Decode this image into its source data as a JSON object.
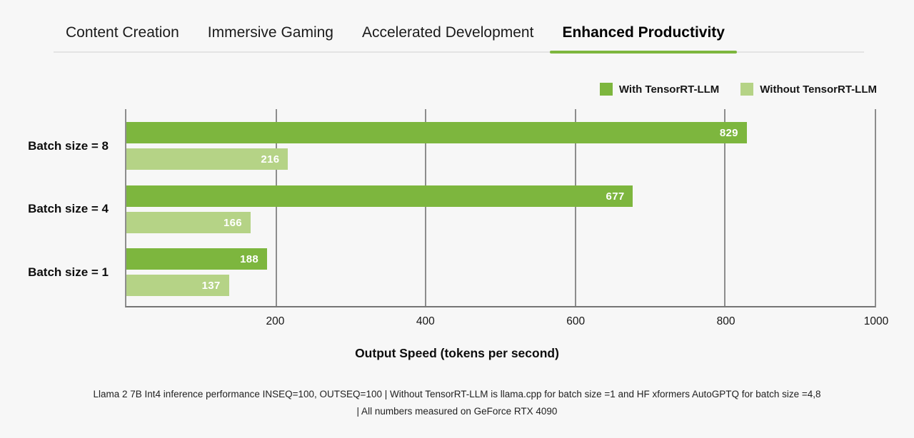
{
  "tabs": {
    "items": [
      {
        "label": "Content Creation",
        "active": false
      },
      {
        "label": "Immersive Gaming",
        "active": false
      },
      {
        "label": "Accelerated Development",
        "active": false
      },
      {
        "label": "Enhanced Productivity",
        "active": true
      }
    ]
  },
  "legend": {
    "items": [
      {
        "label": "With TensorRT-LLM",
        "color": "#7db63e"
      },
      {
        "label": "Without TensorRT-LLM",
        "color": "#b5d386"
      }
    ]
  },
  "chart_data": {
    "type": "bar",
    "orientation": "horizontal",
    "title": "",
    "categories": [
      "Batch size = 8",
      "Batch size = 4",
      "Batch size = 1"
    ],
    "series": [
      {
        "name": "With TensorRT-LLM",
        "color": "#7db63e",
        "values": [
          829,
          677,
          188
        ]
      },
      {
        "name": "Without TensorRT-LLM",
        "color": "#b5d386",
        "values": [
          216,
          166,
          137
        ]
      }
    ],
    "xlabel": "Output Speed (tokens per second)",
    "ylabel": "",
    "xlim": [
      0,
      1000
    ],
    "xticks": [
      200,
      400,
      600,
      800,
      1000
    ],
    "grid": "vertical",
    "gridline_color": "#8d8d8d",
    "legend_position": "top-right",
    "value_labels": "inside-end",
    "value_label_color": "#ffffff"
  },
  "footnote": {
    "lines": [
      "Llama 2 7B Int4 inference performance INSEQ=100, OUTSEQ=100 | Without TensorRT-LLM is llama.cpp for batch size =1 and HF xformers AutoGPTQ for batch size =4,8",
      "| All numbers measured on GeForce RTX 4090"
    ]
  },
  "colors": {
    "accent_green": "#7db63e",
    "light_green": "#b5d386",
    "background": "#f7f7f7",
    "tab_underline_inactive": "#e4e4e4",
    "axis_line": "#757575"
  }
}
